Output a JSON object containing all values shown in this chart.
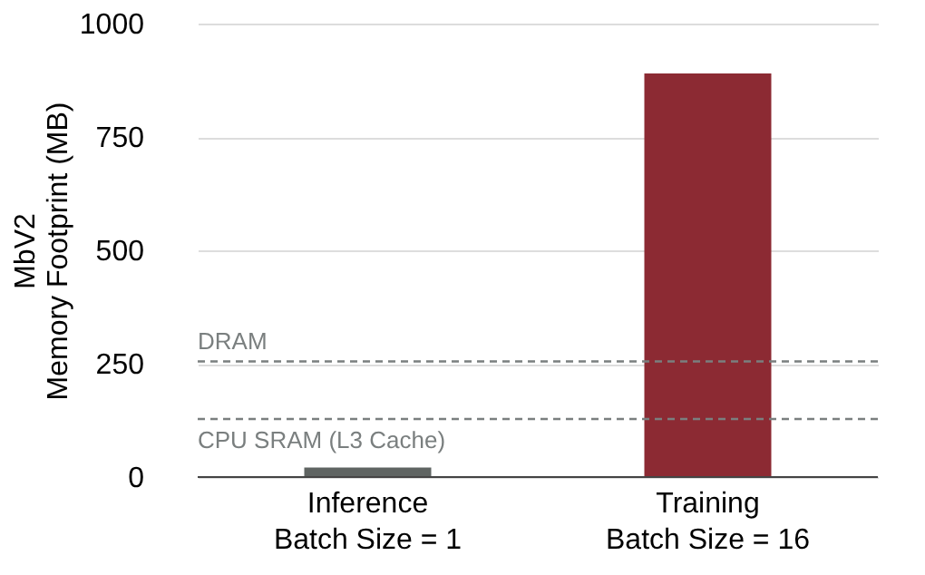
{
  "chart_data": {
    "type": "bar",
    "ylabel": "MbV2\nMemory Footprint (MB)",
    "categories": [
      "Inference\nBatch Size = 1",
      "Training\nBatch Size = 16"
    ],
    "values": [
      21,
      890
    ],
    "colors": [
      "#5f6462",
      "#8c2a33"
    ],
    "ylim": [
      0,
      1000
    ],
    "yticks": [
      0,
      250,
      500,
      750,
      1000
    ],
    "grid": "y",
    "ref_lines": [
      {
        "axis": "y",
        "value": 255,
        "label": "DRAM",
        "color": "#7a7f7f",
        "line_style": "dashed"
      },
      {
        "axis": "y",
        "value": 128,
        "label": "CPU SRAM (L3 Cache)",
        "color": "#7a7f7f",
        "line_style": "dashed"
      }
    ]
  }
}
